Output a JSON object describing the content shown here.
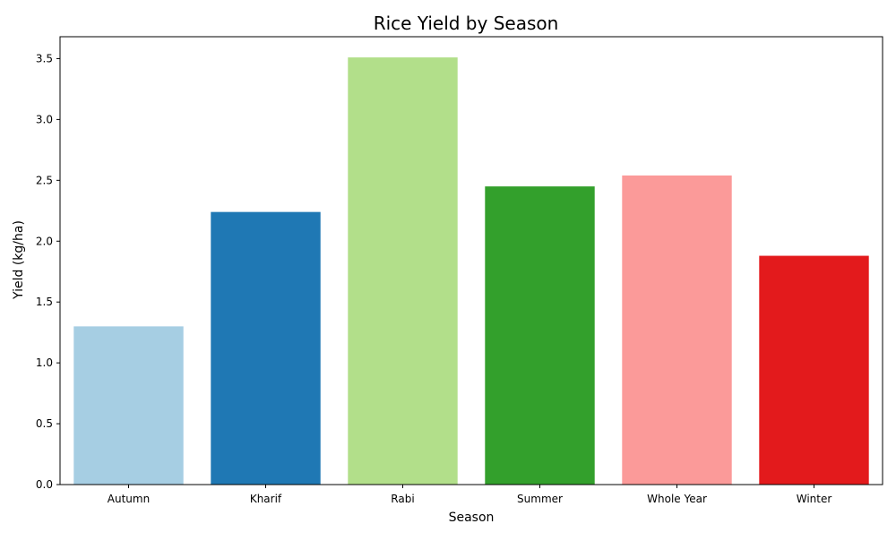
{
  "chart_data": {
    "type": "bar",
    "title": "Rice Yield by Season",
    "xlabel": "Season",
    "ylabel": "Yield (kg/ha)",
    "categories": [
      "Autumn",
      "Kharif",
      "Rabi",
      "Summer",
      "Whole Year",
      "Winter"
    ],
    "values": [
      1.3,
      2.24,
      3.51,
      2.45,
      2.54,
      1.88
    ],
    "colors": [
      "#a6cee3",
      "#1f78b4",
      "#b2df8a",
      "#33a02c",
      "#fb9a99",
      "#e31a1c"
    ],
    "ylim": [
      0,
      3.68
    ],
    "yticks": [
      0.0,
      0.5,
      1.0,
      1.5,
      2.0,
      2.5,
      3.0,
      3.5
    ],
    "ytick_labels": [
      "0.0",
      "0.5",
      "1.0",
      "1.5",
      "2.0",
      "2.5",
      "3.0",
      "3.5"
    ],
    "grid": false,
    "legend": "none"
  }
}
